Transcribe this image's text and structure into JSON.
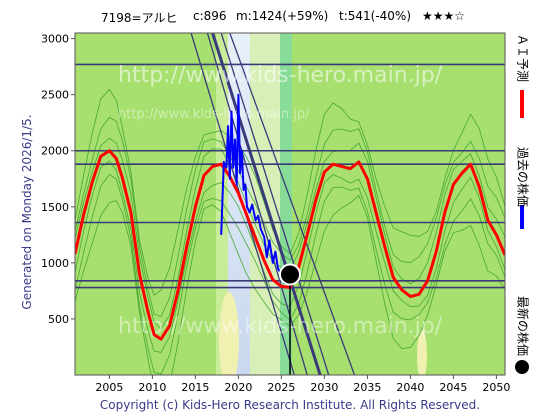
{
  "header": {
    "code": "7198=アルヒ",
    "current": "c:896",
    "max": "m:1424(+59%)",
    "target": "t:541(-40%)",
    "stars": "★★★☆"
  },
  "side_text": "Generated on Monday 2026/1/5.",
  "footer": "Copyright (c) Kids-Hero Research Institute. All Rights Reserved.",
  "legend": {
    "forecast": "ＡＩ予測",
    "past": "過去の株価",
    "latest": "最新の株価"
  },
  "watermark": "http://www.kids-hero.main.jp/",
  "colors": {
    "forecast": "#ff0000",
    "past": "#0000ff",
    "latest": "#000000",
    "band_green": "#a8e070",
    "grid_green": "#3aa028",
    "level_line": "#3a3a7a"
  },
  "chart_data": {
    "type": "line",
    "xlim": [
      2001,
      2051
    ],
    "ylim": [
      0,
      3050
    ],
    "x_ticks": [
      2005,
      2010,
      2015,
      2020,
      2025,
      2030,
      2035,
      2040,
      2045,
      2050
    ],
    "y_ticks": [
      500,
      1000,
      1500,
      2000,
      2500,
      3000
    ],
    "horizontal_levels": [
      780,
      840,
      1360,
      1880,
      2000,
      2770
    ],
    "latest_point": {
      "x": 2026.0,
      "y": 896
    },
    "series": [
      {
        "name": "ＡＩ予測",
        "x": [
          2001,
          2002,
          2003,
          2004,
          2005,
          2005.8,
          2006.5,
          2007.5,
          2008.5,
          2009.5,
          2010.2,
          2011,
          2012,
          2013,
          2014,
          2015,
          2016,
          2017,
          2018,
          2019,
          2020,
          2021,
          2022,
          2023,
          2024,
          2025,
          2026,
          2027,
          2028,
          2029,
          2030,
          2031,
          2032,
          2033,
          2034,
          2035,
          2036,
          2037,
          2038,
          2039,
          2040,
          2041,
          2042,
          2043,
          2044,
          2045,
          2046,
          2047,
          2048,
          2049,
          2050,
          2051
        ],
        "y": [
          1080,
          1430,
          1720,
          1950,
          2000,
          1930,
          1760,
          1450,
          900,
          560,
          360,
          320,
          440,
          760,
          1150,
          1500,
          1780,
          1860,
          1880,
          1770,
          1620,
          1420,
          1220,
          1020,
          850,
          790,
          780,
          960,
          1250,
          1560,
          1810,
          1880,
          1860,
          1840,
          1900,
          1750,
          1450,
          1150,
          870,
          760,
          700,
          720,
          840,
          1100,
          1450,
          1700,
          1800,
          1880,
          1680,
          1380,
          1250,
          1070
        ]
      },
      {
        "name": "過去の株価",
        "x": [
          2018.0,
          2018.3,
          2018.6,
          2018.8,
          2019.0,
          2019.2,
          2019.4,
          2019.6,
          2019.8,
          2020.0,
          2020.2,
          2020.4,
          2020.6,
          2020.8,
          2021.0,
          2021.3,
          2021.6,
          2022.0,
          2022.3,
          2022.6,
          2023.0,
          2023.3,
          2023.6,
          2024.0,
          2024.3,
          2024.6,
          2025.0,
          2025.3,
          2025.6,
          2025.8
        ],
        "y": [
          1250,
          1900,
          1850,
          2220,
          1750,
          2350,
          1850,
          2100,
          1700,
          2500,
          1800,
          2000,
          1650,
          1700,
          1500,
          1450,
          1520,
          1380,
          1420,
          1300,
          1230,
          1050,
          1200,
          1000,
          1100,
          950,
          900,
          820,
          880,
          896
        ]
      }
    ]
  }
}
